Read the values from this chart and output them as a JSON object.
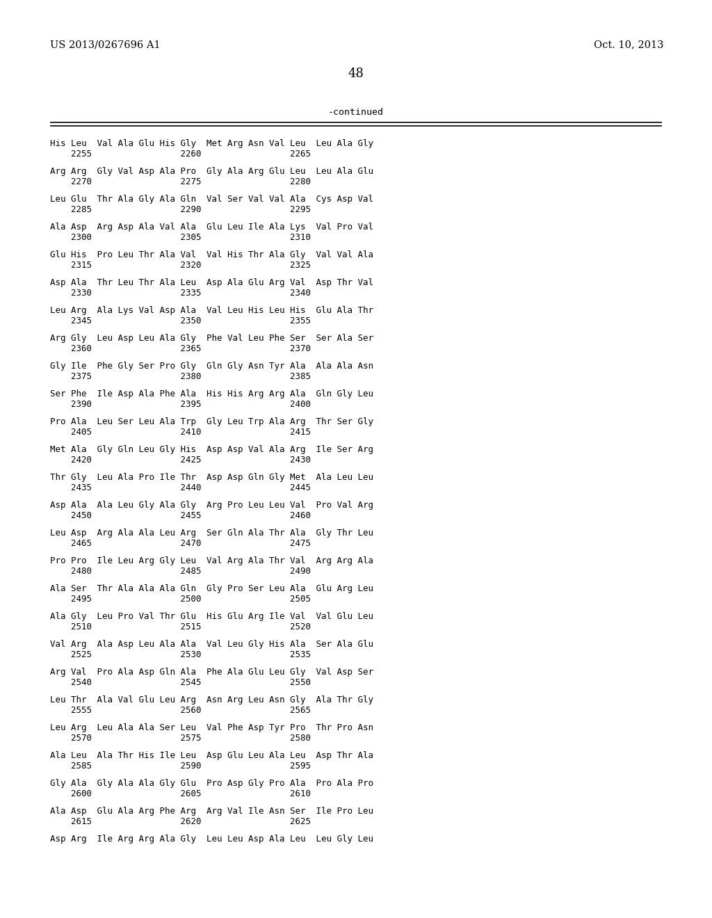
{
  "header_left": "US 2013/0267696 A1",
  "header_right": "Oct. 10, 2013",
  "page_number": "48",
  "continued_label": "-continued",
  "background_color": "#ffffff",
  "text_color": "#000000",
  "sequence_lines": [
    [
      "His Leu  Val Ala Glu His Gly  Met Arg Asn Val Leu  Leu Ala Gly",
      "    2255                 2260                 2265"
    ],
    [
      "Arg Arg  Gly Val Asp Ala Pro  Gly Ala Arg Glu Leu  Leu Ala Glu",
      "    2270                 2275                 2280"
    ],
    [
      "Leu Glu  Thr Ala Gly Ala Gln  Val Ser Val Val Ala  Cys Asp Val",
      "    2285                 2290                 2295"
    ],
    [
      "Ala Asp  Arg Asp Ala Val Ala  Glu Leu Ile Ala Lys  Val Pro Val",
      "    2300                 2305                 2310"
    ],
    [
      "Glu His  Pro Leu Thr Ala Val  Val His Thr Ala Gly  Val Val Ala",
      "    2315                 2320                 2325"
    ],
    [
      "Asp Ala  Thr Leu Thr Ala Leu  Asp Ala Glu Arg Val  Asp Thr Val",
      "    2330                 2335                 2340"
    ],
    [
      "Leu Arg  Ala Lys Val Asp Ala  Val Leu His Leu His  Glu Ala Thr",
      "    2345                 2350                 2355"
    ],
    [
      "Arg Gly  Leu Asp Leu Ala Gly  Phe Val Leu Phe Ser  Ser Ala Ser",
      "    2360                 2365                 2370"
    ],
    [
      "Gly Ile  Phe Gly Ser Pro Gly  Gln Gly Asn Tyr Ala  Ala Ala Asn",
      "    2375                 2380                 2385"
    ],
    [
      "Ser Phe  Ile Asp Ala Phe Ala  His His Arg Arg Ala  Gln Gly Leu",
      "    2390                 2395                 2400"
    ],
    [
      "Pro Ala  Leu Ser Leu Ala Trp  Gly Leu Trp Ala Arg  Thr Ser Gly",
      "    2405                 2410                 2415"
    ],
    [
      "Met Ala  Gly Gln Leu Gly His  Asp Asp Val Ala Arg  Ile Ser Arg",
      "    2420                 2425                 2430"
    ],
    [
      "Thr Gly  Leu Ala Pro Ile Thr  Asp Asp Gln Gly Met  Ala Leu Leu",
      "    2435                 2440                 2445"
    ],
    [
      "Asp Ala  Ala Leu Gly Ala Gly  Arg Pro Leu Leu Val  Pro Val Arg",
      "    2450                 2455                 2460"
    ],
    [
      "Leu Asp  Arg Ala Ala Leu Arg  Ser Gln Ala Thr Ala  Gly Thr Leu",
      "    2465                 2470                 2475"
    ],
    [
      "Pro Pro  Ile Leu Arg Gly Leu  Val Arg Ala Thr Val  Arg Arg Ala",
      "    2480                 2485                 2490"
    ],
    [
      "Ala Ser  Thr Ala Ala Ala Gln  Gly Pro Ser Leu Ala  Glu Arg Leu",
      "    2495                 2500                 2505"
    ],
    [
      "Ala Gly  Leu Pro Val Thr Glu  His Glu Arg Ile Val  Val Glu Leu",
      "    2510                 2515                 2520"
    ],
    [
      "Val Arg  Ala Asp Leu Ala Ala  Val Leu Gly His Ala  Ser Ala Glu",
      "    2525                 2530                 2535"
    ],
    [
      "Arg Val  Pro Ala Asp Gln Ala  Phe Ala Glu Leu Gly  Val Asp Ser",
      "    2540                 2545                 2550"
    ],
    [
      "Leu Thr  Ala Val Glu Leu Arg  Asn Arg Leu Asn Gly  Ala Thr Gly",
      "    2555                 2560                 2565"
    ],
    [
      "Leu Arg  Leu Ala Ala Ser Leu  Val Phe Asp Tyr Pro  Thr Pro Asn",
      "    2570                 2575                 2580"
    ],
    [
      "Ala Leu  Ala Thr His Ile Leu  Asp Glu Leu Ala Leu  Asp Thr Ala",
      "    2585                 2590                 2595"
    ],
    [
      "Gly Ala  Gly Ala Ala Gly Glu  Pro Asp Gly Pro Ala  Pro Ala Pro",
      "    2600                 2605                 2610"
    ],
    [
      "Ala Asp  Glu Ala Arg Phe Arg  Arg Val Ile Asn Ser  Ile Pro Leu",
      "    2615                 2620                 2625"
    ],
    [
      "Asp Arg  Ile Arg Arg Ala Gly  Leu Leu Asp Ala Leu  Leu Gly Leu",
      ""
    ]
  ]
}
